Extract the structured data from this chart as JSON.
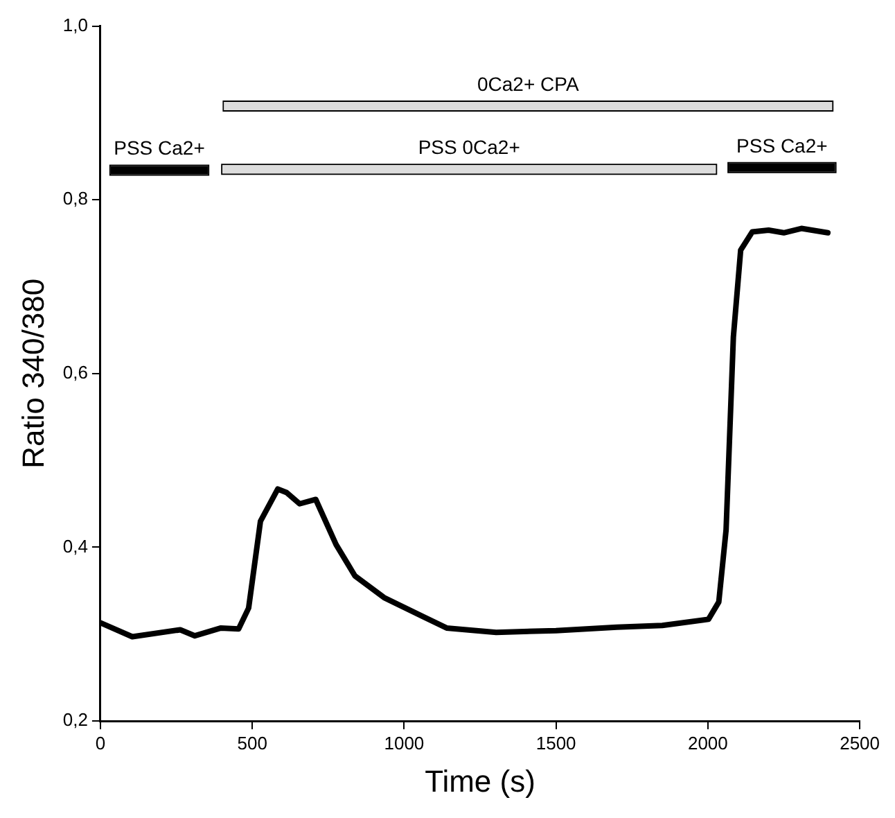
{
  "chart_data": {
    "type": "line",
    "xlabel": "Time (s)",
    "ylabel": "Ratio 340/380",
    "x": [
      0,
      105,
      263,
      311,
      397,
      455,
      488,
      527,
      584,
      613,
      656,
      709,
      776,
      838,
      934,
      1063,
      1140,
      1303,
      1500,
      1700,
      1850,
      2002,
      2036,
      2060,
      2084,
      2108,
      2146,
      2200,
      2250,
      2308,
      2395
    ],
    "series": [
      {
        "color": "#000000",
        "values": [
          0.313,
          0.297,
          0.305,
          0.298,
          0.307,
          0.306,
          0.33,
          0.43,
          0.467,
          0.463,
          0.45,
          0.455,
          0.403,
          0.367,
          0.342,
          0.32,
          0.307,
          0.302,
          0.304,
          0.308,
          0.31,
          0.317,
          0.337,
          0.42,
          0.642,
          0.742,
          0.763,
          0.765,
          0.762,
          0.767,
          0.762
        ]
      },
      {
        "name": "PSS Ca2+",
        "color": "#000000",
        "x": [
          34,
          354
        ],
        "values": [
          0.834,
          0.834
        ]
      },
      {
        "name": "PSS 0Ca2+",
        "color": "#dddddd",
        "x": [
          402,
          2026
        ],
        "values": [
          0.835,
          0.835
        ]
      },
      {
        "name": "PSS Ca2+",
        "color": "#000000",
        "x": [
          2069,
          2419
        ],
        "values": [
          0.837,
          0.837
        ]
      },
      {
        "name": "0Ca2+ CPA",
        "color": "#dddddd",
        "x": [
          407,
          2409
        ],
        "values": [
          0.908,
          0.908
        ]
      }
    ],
    "xlim": [
      0,
      2500
    ],
    "xticks": [
      0,
      500,
      1000,
      1500,
      2000,
      2500
    ],
    "ylim": [
      0.2,
      1.0
    ],
    "yticks": [
      {
        "value": 0.2,
        "label": "0,2"
      },
      {
        "value": 0.4,
        "label": "0,4"
      },
      {
        "value": 0.6,
        "label": "0,6"
      },
      {
        "value": 0.8,
        "label": "0,8"
      },
      {
        "value": 1.0,
        "label": "1,0"
      }
    ],
    "grid": false,
    "legend": false,
    "marker": "none",
    "line_style": "solid"
  }
}
